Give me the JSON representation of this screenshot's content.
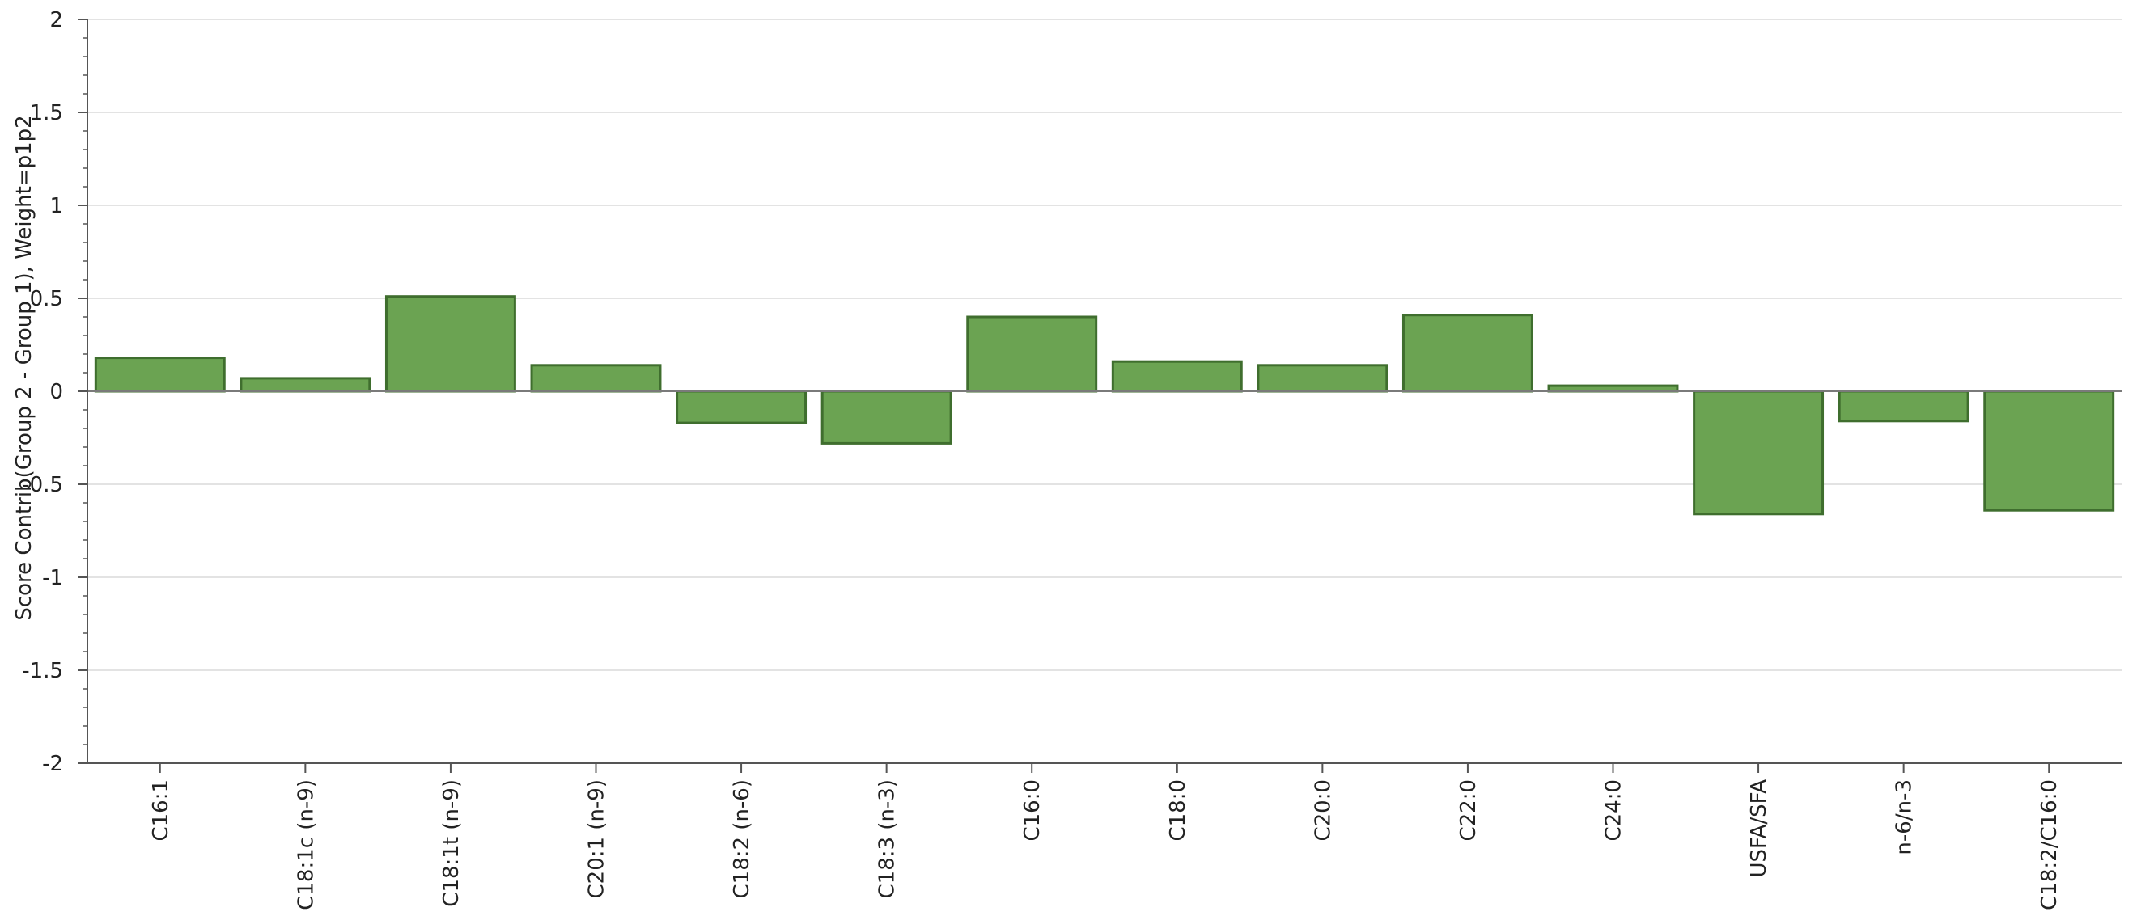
{
  "chart_data": {
    "type": "bar",
    "ylabel": "Score Contrib(Group 2 - Group 1), Weight=p1p2",
    "xlabel": "",
    "ylim": [
      -2,
      2
    ],
    "yticks": [
      {
        "value": 2,
        "label": "2"
      },
      {
        "value": 1.5,
        "label": "1.5"
      },
      {
        "value": 1,
        "label": "1"
      },
      {
        "value": 0.5,
        "label": "0.5"
      },
      {
        "value": 0,
        "label": "0"
      },
      {
        "value": -0.5,
        "label": "-0.5"
      },
      {
        "value": -1,
        "label": "-1"
      },
      {
        "value": -1.5,
        "label": "-1.5"
      },
      {
        "value": -2,
        "label": "-2"
      }
    ],
    "grid": true,
    "categories": [
      "C16:1",
      "C18:1c (n-9)",
      "C18:1t (n-9)",
      "C20:1 (n-9)",
      "C18:2 (n-6)",
      "C18:3 (n-3)",
      "C16:0",
      "C18:0",
      "C20:0",
      "C22:0",
      "C24:0",
      "USFA/SFA",
      "n-6/n-3",
      "C18:2/C16:0"
    ],
    "values": [
      0.18,
      0.07,
      0.51,
      0.14,
      -0.17,
      -0.28,
      0.4,
      0.16,
      0.14,
      0.41,
      0.03,
      -0.66,
      -0.16,
      -0.64
    ],
    "colors": {
      "bar_fill": "#6ba352",
      "bar_stroke": "#3f6e2e",
      "grid": "#e3e3e3",
      "axis": "#555555",
      "zero_line": "#7a7a7a"
    }
  }
}
